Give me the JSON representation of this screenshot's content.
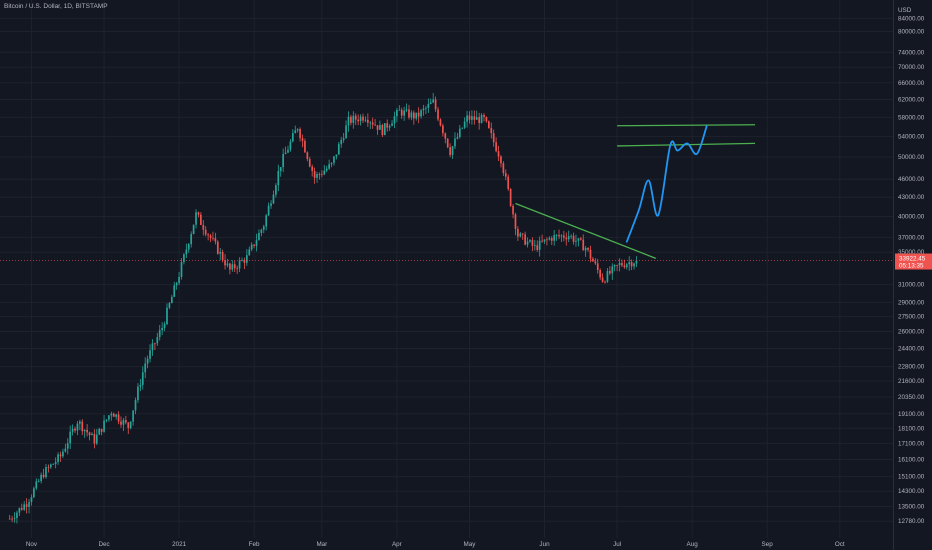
{
  "header": {
    "legend": "Bitcoin / U.S. Dollar, 1D, BITSTAMP"
  },
  "colors": {
    "background": "#131722",
    "up_candle": "#26a69a",
    "down_candle": "#ef5350",
    "trendline": "#4caf50",
    "path_projection": "#2196f3",
    "last_price_line": "#ef5350",
    "axis_text": "#b2b5be"
  },
  "chart_data": {
    "type": "candlestick",
    "title": "Bitcoin / U.S. Dollar, 1D, BITSTAMP",
    "x_axis": {
      "tick_labels": [
        "Nov",
        "Dec",
        "2021",
        "Feb",
        "Mar",
        "Apr",
        "May",
        "Jun",
        "Jul",
        "Aug",
        "Sep",
        "Oct"
      ],
      "tick_dates": [
        "2020-11-01",
        "2020-12-01",
        "2021-01-01",
        "2021-02-01",
        "2021-03-01",
        "2021-04-01",
        "2021-05-01",
        "2021-06-01",
        "2021-07-01",
        "2021-08-01",
        "2021-09-01",
        "2021-10-01"
      ],
      "range": [
        "2020-10-19",
        "2021-10-23"
      ]
    },
    "y_axis": {
      "scale": "log",
      "position": "right",
      "range": [
        12000,
        90000
      ],
      "tick_labels": [
        "12780.00",
        "13500.00",
        "14300.00",
        "15100.00",
        "16100.00",
        "17100.00",
        "18100.00",
        "19100.00",
        "20350.00",
        "21600.00",
        "22800.00",
        "24400.00",
        "26000.00",
        "27500.00",
        "29000.00",
        "31000.00",
        "35000.00",
        "37000.00",
        "40000.00",
        "43000.00",
        "46000.00",
        "50000.00",
        "54000.00",
        "58000.00",
        "62000.00",
        "66000.00",
        "70000.00",
        "74000.00",
        "80000.00",
        "84000.00",
        "USD"
      ]
    },
    "price_series": {
      "name": "BTCUSD",
      "dates": [
        "2020-10-23",
        "2020-10-30",
        "2020-11-06",
        "2020-11-13",
        "2020-11-20",
        "2020-11-27",
        "2020-12-04",
        "2020-12-11",
        "2020-12-18",
        "2020-12-25",
        "2021-01-01",
        "2021-01-08",
        "2021-01-15",
        "2021-01-22",
        "2021-01-29",
        "2021-02-05",
        "2021-02-12",
        "2021-02-19",
        "2021-02-26",
        "2021-03-05",
        "2021-03-12",
        "2021-03-19",
        "2021-03-26",
        "2021-04-02",
        "2021-04-09",
        "2021-04-16",
        "2021-04-23",
        "2021-04-30",
        "2021-05-07",
        "2021-05-14",
        "2021-05-21",
        "2021-05-28",
        "2021-06-04",
        "2021-06-11",
        "2021-06-18",
        "2021-06-25",
        "2021-07-02",
        "2021-07-09"
      ],
      "close": [
        12900,
        13700,
        15300,
        16300,
        18600,
        17300,
        19300,
        18200,
        23100,
        26400,
        32200,
        40300,
        36400,
        32700,
        34300,
        38800,
        48700,
        56000,
        46300,
        48500,
        57200,
        58300,
        55200,
        59300,
        58100,
        61400,
        51100,
        57800,
        57500,
        49700,
        37300,
        35600,
        37000,
        37300,
        35600,
        31600,
        33400,
        33922.45
      ]
    },
    "last_price": {
      "value": 33922.45,
      "label": "33922.45",
      "countdown": "05:13:35"
    },
    "drawings": [
      {
        "name": "descending-trendline",
        "points": [
          [
            "2021-05-20",
            42000
          ],
          [
            "2021-07-17",
            34200
          ]
        ]
      },
      {
        "name": "resistance-line-upper",
        "points": [
          [
            "2021-07-01",
            56200
          ],
          [
            "2021-08-27",
            56400
          ]
        ]
      },
      {
        "name": "resistance-line-lower",
        "points": [
          [
            "2021-07-01",
            52100
          ],
          [
            "2021-08-27",
            52600
          ]
        ]
      },
      {
        "name": "projected-path",
        "points": [
          [
            "2021-07-05",
            36400
          ],
          [
            "2021-07-10",
            41000
          ],
          [
            "2021-07-14",
            45800
          ],
          [
            "2021-07-18",
            40200
          ],
          [
            "2021-07-23",
            52300
          ],
          [
            "2021-07-26",
            51200
          ],
          [
            "2021-07-30",
            52600
          ],
          [
            "2021-08-03",
            50600
          ],
          [
            "2021-08-07",
            56100
          ]
        ]
      }
    ]
  }
}
